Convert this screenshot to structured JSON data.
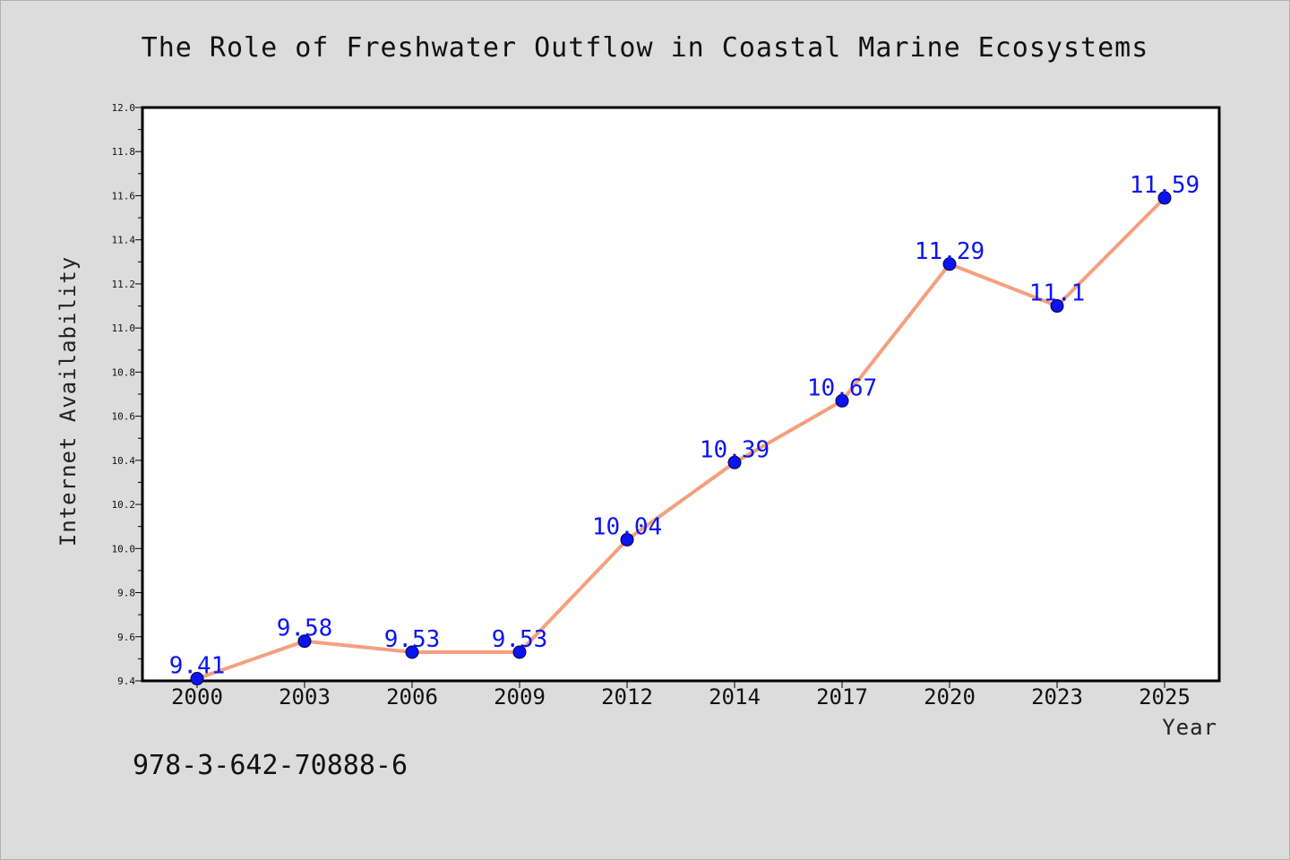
{
  "chart_data": {
    "type": "line",
    "title": "The Role of Freshwater Outflow in Coastal Marine Ecosystems",
    "xlabel": "Year",
    "ylabel": "Internet Availability",
    "categories": [
      "2000",
      "2003",
      "2006",
      "2009",
      "2012",
      "2014",
      "2017",
      "2020",
      "2023",
      "2025"
    ],
    "series": [
      {
        "values": [
          9.41,
          9.58,
          9.53,
          9.53,
          10.04,
          10.39,
          10.67,
          11.29,
          11.1,
          11.59
        ],
        "data_labels": [
          "9.41",
          "9.58",
          "9.53",
          "9.53",
          "10.04",
          "10.39",
          "10.67",
          "11.29",
          "11.1",
          "11.59"
        ]
      }
    ],
    "ylim": [
      9.4,
      12.0
    ],
    "yticks": [
      "9.4",
      "9.6",
      "9.8",
      "10.0",
      "10.2",
      "10.4",
      "10.6",
      "10.8",
      "11.0",
      "11.2",
      "11.4",
      "11.6",
      "11.8",
      "12.0"
    ],
    "grid": false,
    "legend": "none"
  },
  "footer_text": "978-3-642-70888-6",
  "colors": {
    "background": "#dcdcdc",
    "plot_background": "#ffffff",
    "line": "#f4a07e",
    "marker": "#0a14f0",
    "label": "#0a14f0"
  }
}
